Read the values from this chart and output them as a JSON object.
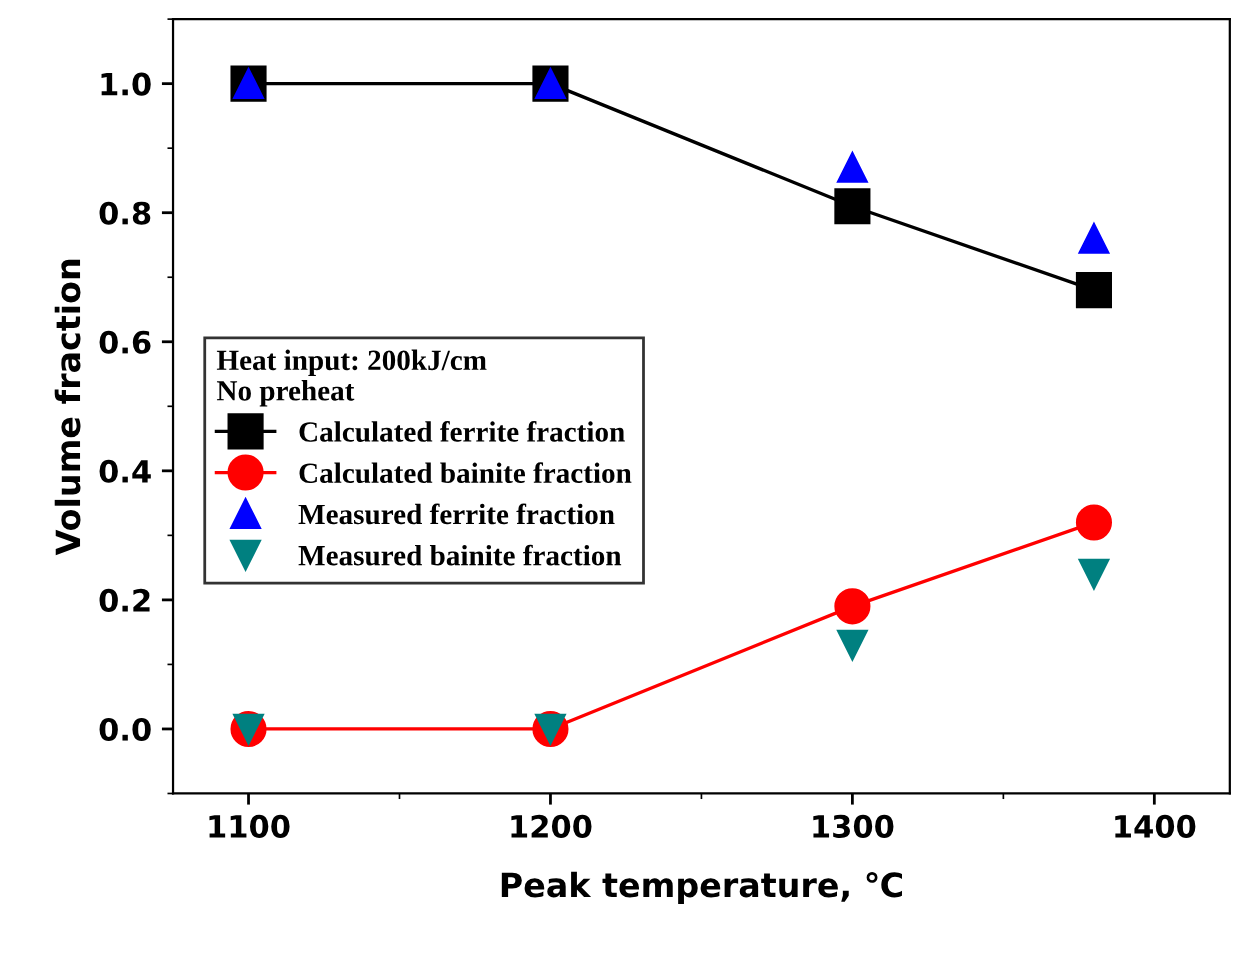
{
  "chart_data": {
    "type": "line",
    "xlabel": "Peak temperature, ℃",
    "ylabel": "Volume fraction",
    "legend_title": "Heat input: 200kJ/cm\nNo preheat",
    "x": [
      1100,
      1200,
      1300,
      1380
    ],
    "series": [
      {
        "name": "Calculated ferrite fraction",
        "color": "#000000",
        "values": [
          1.0,
          1.0,
          0.81,
          0.68
        ],
        "marker": "square"
      },
      {
        "name": "Calculated bainite fraction",
        "color": "#ff0000",
        "values": [
          0.0,
          0.0,
          0.19,
          0.32
        ],
        "marker": "circle"
      },
      {
        "name": "Measured ferrite fraction",
        "type": "scatter",
        "color": "#0000ff",
        "values": [
          1.0,
          1.0,
          0.87,
          0.76
        ],
        "marker": "triangle"
      },
      {
        "name": "Measured bainite fraction",
        "type": "scatter",
        "color": "#008080",
        "values": [
          0.0,
          0.0,
          0.13,
          0.24
        ],
        "marker": "triangle_down"
      }
    ],
    "xlim": [
      1075,
      1425
    ],
    "ylim": [
      -0.1,
      1.1
    ],
    "xticks": [
      1100,
      1200,
      1300,
      1400
    ],
    "yticks": [
      {
        "value": 0,
        "label": "0.0"
      },
      {
        "value": 0.2,
        "label": "0.2"
      },
      {
        "value": 0.4,
        "label": "0.4"
      },
      {
        "value": 0.6,
        "label": "0.6"
      },
      {
        "value": 0.8,
        "label": "0.8"
      },
      {
        "value": 1,
        "label": "1.0"
      }
    ],
    "grid": false,
    "legend": "center left"
  }
}
